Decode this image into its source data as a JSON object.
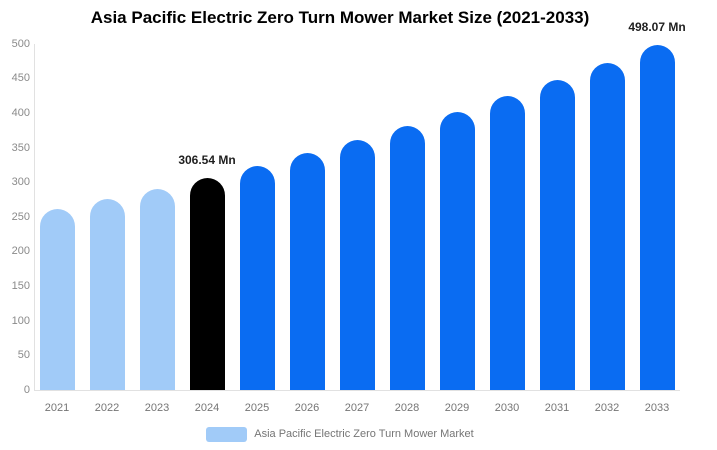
{
  "chart_data": {
    "type": "bar",
    "title": "Asia Pacific Electric Zero Turn Mower Market Size (2021-2033)",
    "unit": "Mn",
    "categories": [
      "2021",
      "2022",
      "2023",
      "2024",
      "2025",
      "2026",
      "2027",
      "2028",
      "2029",
      "2030",
      "2031",
      "2032",
      "2033"
    ],
    "values": [
      260.7,
      275.2,
      290.4,
      306.54,
      323.5,
      341.5,
      360.4,
      380.4,
      401.5,
      423.7,
      447.2,
      472.0,
      498.07
    ],
    "bar_styles": [
      "past",
      "past",
      "past",
      "current",
      "forecast",
      "forecast",
      "forecast",
      "forecast",
      "forecast",
      "forecast",
      "forecast",
      "forecast",
      "forecast"
    ],
    "palette": {
      "past": "#a1cbf8",
      "current": "#000000",
      "forecast": "#0a6cf2"
    },
    "data_labels": [
      {
        "category": "2024",
        "text": "306.54 Mn"
      },
      {
        "category": "2033",
        "text": "498.07 Mn"
      }
    ],
    "y_axis": {
      "min": 0,
      "max": 500,
      "step": 50,
      "ticks": [
        0,
        50,
        100,
        150,
        200,
        250,
        300,
        350,
        400,
        450,
        500
      ]
    },
    "xlabel": "",
    "ylabel": "",
    "grid": false,
    "legend_position": "bottom-center",
    "legend": {
      "label": "Asia Pacific Electric Zero Turn Mower Market",
      "swatch_color": "#a1cbf8"
    },
    "colors": {
      "axis_line": "#e1e1e1",
      "tick_text": "#8a8a8a",
      "x_label_text": "#757575",
      "title_text": "#000000",
      "annotation_text": "#1f1f1f"
    }
  }
}
